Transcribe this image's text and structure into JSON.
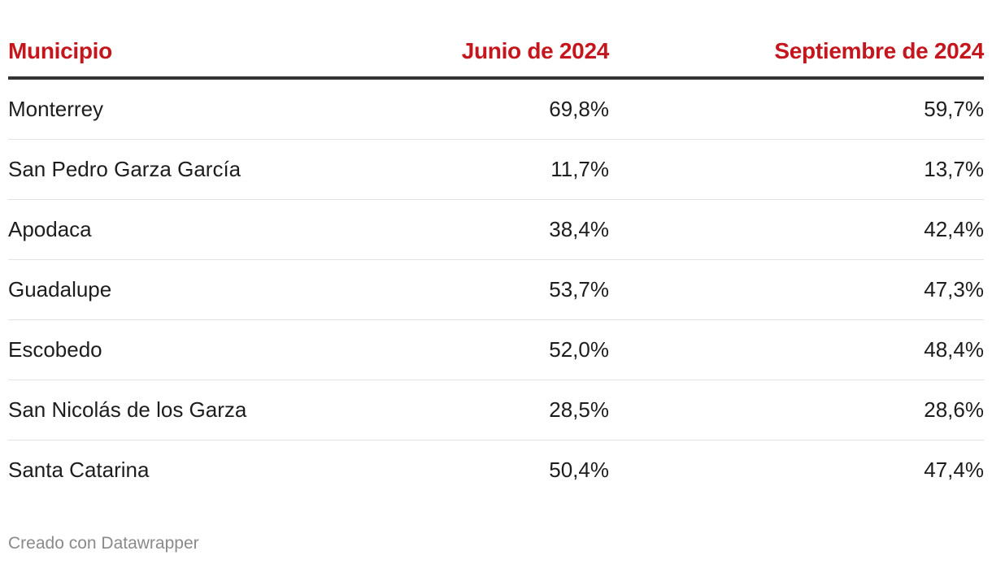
{
  "chart_data": {
    "type": "table",
    "columns": [
      "Municipio",
      "Junio de 2024",
      "Septiembre de 2024"
    ],
    "rows": [
      {
        "municipio": "Monterrey",
        "junio": "69,8%",
        "septiembre": "59,7%"
      },
      {
        "municipio": "San Pedro Garza García",
        "junio": "11,7%",
        "septiembre": "13,7%"
      },
      {
        "municipio": "Apodaca",
        "junio": "38,4%",
        "septiembre": "42,4%"
      },
      {
        "municipio": "Guadalupe",
        "junio": "53,7%",
        "septiembre": "47,3%"
      },
      {
        "municipio": "Escobedo",
        "junio": "52,0%",
        "septiembre": "48,4%"
      },
      {
        "municipio": "San Nicolás de los Garza",
        "junio": "28,5%",
        "septiembre": "28,6%"
      },
      {
        "municipio": "Santa Catarina",
        "junio": "50,4%",
        "septiembre": "47,4%"
      }
    ],
    "header_color": "#c4161c"
  },
  "footer": {
    "credit": "Creado con Datawrapper"
  }
}
